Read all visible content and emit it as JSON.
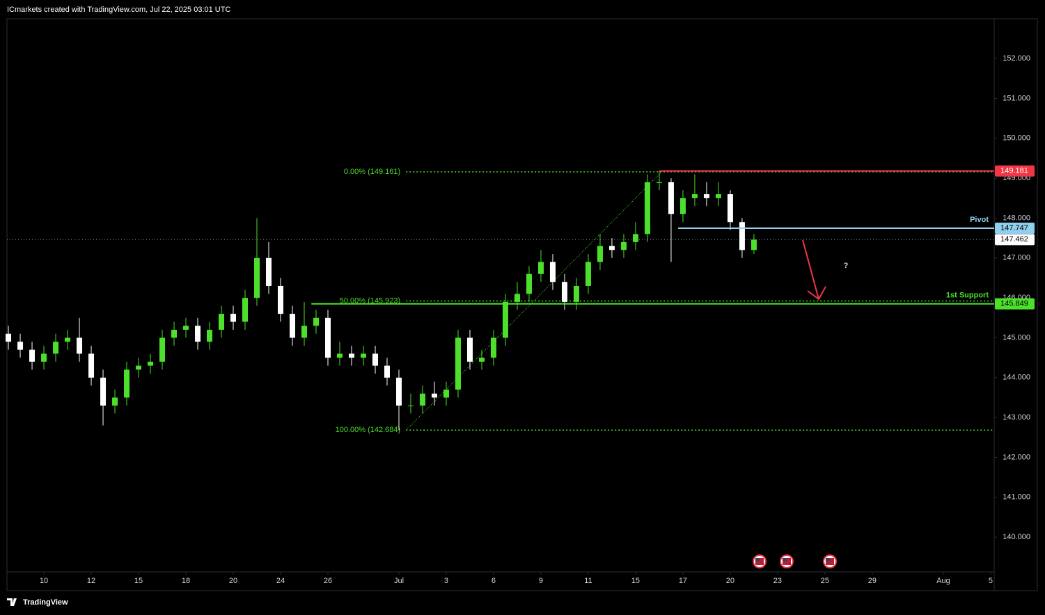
{
  "header": "ICmarkets created with TradingView.com, Jul 22, 2025 03:01 UTC",
  "footer": "TradingView",
  "chart_data": {
    "type": "candlestick",
    "x": [
      -0.5,
      0,
      0.5,
      1,
      1.5,
      2,
      2.5,
      3,
      3.5,
      4,
      4.5,
      5,
      5.5,
      6,
      6.5,
      7,
      7.5,
      8,
      8.5,
      9,
      9.5,
      10,
      10.5,
      11,
      11.5,
      12,
      12.5,
      13,
      13.5,
      14,
      14.5,
      15,
      15.5,
      16,
      16.5,
      17,
      17.5,
      18,
      18.5,
      19,
      19.5,
      20,
      20.5,
      21,
      21.5,
      22,
      22.5,
      23,
      23.5,
      24,
      24.5,
      25,
      25.5,
      26,
      26.5,
      27,
      27.5,
      28,
      28.5,
      29,
      29.5,
      30,
      30.5,
      31
    ],
    "open": [
      145.1,
      144.9,
      144.7,
      144.4,
      144.6,
      144.9,
      145.0,
      144.6,
      144.0,
      143.3,
      143.5,
      144.2,
      144.3,
      144.4,
      145.0,
      145.2,
      145.3,
      144.9,
      145.2,
      145.6,
      145.4,
      146.0,
      147.0,
      146.3,
      145.6,
      145.0,
      145.3,
      145.5,
      144.5,
      144.6,
      144.5,
      144.6,
      144.3,
      144.0,
      143.3,
      143.3,
      143.6,
      143.5,
      143.7,
      145.0,
      144.4,
      144.5,
      145.0,
      145.9,
      146.1,
      146.6,
      146.9,
      146.4,
      145.9,
      146.3,
      146.9,
      147.3,
      147.2,
      147.4,
      147.6,
      148.9,
      148.9,
      148.1,
      148.5,
      148.6,
      148.5,
      148.6,
      147.9,
      147.2
    ],
    "high": [
      145.3,
      145.1,
      144.9,
      144.8,
      145.1,
      145.2,
      145.5,
      144.8,
      144.2,
      143.7,
      144.4,
      144.5,
      144.6,
      145.2,
      145.4,
      145.5,
      145.5,
      145.4,
      145.8,
      145.8,
      146.2,
      148.0,
      147.4,
      146.5,
      145.8,
      145.9,
      145.7,
      145.7,
      144.9,
      144.8,
      144.8,
      144.8,
      144.5,
      144.2,
      143.6,
      143.8,
      143.9,
      143.9,
      145.2,
      145.2,
      144.7,
      145.2,
      146.1,
      146.4,
      146.8,
      147.2,
      147.1,
      146.6,
      146.5,
      147.1,
      147.6,
      147.5,
      147.6,
      147.9,
      149.1,
      149.18,
      149.0,
      148.7,
      149.1,
      148.9,
      148.9,
      148.7,
      148.0,
      147.6
    ],
    "low": [
      144.7,
      144.5,
      144.2,
      144.2,
      144.4,
      144.7,
      144.4,
      143.8,
      142.8,
      143.1,
      143.3,
      144.0,
      144.1,
      144.2,
      144.8,
      145.0,
      144.7,
      144.7,
      145.0,
      145.2,
      145.2,
      145.8,
      146.1,
      145.4,
      144.8,
      144.8,
      145.1,
      144.3,
      144.3,
      144.3,
      144.3,
      144.1,
      143.8,
      142.68,
      143.1,
      143.1,
      143.3,
      143.3,
      143.5,
      144.2,
      144.2,
      144.3,
      144.8,
      145.7,
      145.9,
      146.4,
      146.2,
      145.7,
      145.7,
      146.1,
      146.7,
      147.0,
      147.0,
      147.2,
      147.4,
      148.7,
      146.9,
      147.9,
      148.3,
      148.3,
      148.3,
      147.7,
      147.0,
      147.1
    ],
    "close": [
      144.9,
      144.7,
      144.4,
      144.6,
      144.9,
      145.0,
      144.6,
      144.0,
      143.3,
      143.5,
      144.2,
      144.3,
      144.4,
      145.0,
      145.2,
      145.3,
      144.9,
      145.2,
      145.6,
      145.4,
      146.0,
      147.0,
      146.3,
      145.6,
      145.0,
      145.3,
      145.5,
      144.5,
      144.6,
      144.5,
      144.6,
      144.3,
      144.0,
      143.3,
      143.3,
      143.6,
      143.5,
      143.7,
      145.0,
      144.4,
      144.5,
      145.0,
      145.9,
      146.1,
      146.6,
      146.9,
      146.4,
      145.9,
      146.3,
      146.9,
      147.3,
      147.2,
      147.4,
      147.6,
      148.9,
      148.9,
      148.1,
      148.5,
      148.6,
      148.5,
      148.6,
      147.9,
      147.2,
      147.46
    ],
    "up_color": "#4cdf2b",
    "down_color": "#ffffff",
    "xlim": [
      -0.56,
      41.15
    ],
    "xticks": [
      {
        "value": 1,
        "label": "10"
      },
      {
        "value": 3,
        "label": "12"
      },
      {
        "value": 5,
        "label": "15"
      },
      {
        "value": 7,
        "label": "18"
      },
      {
        "value": 9,
        "label": "20"
      },
      {
        "value": 11,
        "label": "24"
      },
      {
        "value": 13,
        "label": "26"
      },
      {
        "value": 16,
        "label": "Jul"
      },
      {
        "value": 18,
        "label": "3"
      },
      {
        "value": 20,
        "label": "6"
      },
      {
        "value": 22,
        "label": "9"
      },
      {
        "value": 24,
        "label": "11"
      },
      {
        "value": 26,
        "label": "15"
      },
      {
        "value": 28,
        "label": "17"
      },
      {
        "value": 30,
        "label": "20"
      },
      {
        "value": 32,
        "label": "23"
      },
      {
        "value": 34,
        "label": "25"
      },
      {
        "value": 36,
        "label": "29"
      },
      {
        "value": 39,
        "label": "Aug"
      },
      {
        "value": 41,
        "label": "5"
      }
    ],
    "ylim": [
      139.13,
      152.98
    ],
    "yticks": [
      {
        "value": 140,
        "label": "140.000"
      },
      {
        "value": 141,
        "label": "141.000"
      },
      {
        "value": 142,
        "label": "142.000"
      },
      {
        "value": 143,
        "label": "143.000"
      },
      {
        "value": 144,
        "label": "144.000"
      },
      {
        "value": 145,
        "label": "145.000"
      },
      {
        "value": 146,
        "label": "146.000"
      },
      {
        "value": 147,
        "label": "147.000"
      },
      {
        "value": 148,
        "label": "148.000"
      },
      {
        "value": 149,
        "label": "149.000"
      },
      {
        "value": 150,
        "label": "150.000"
      },
      {
        "value": 151,
        "label": "151.000"
      },
      {
        "value": 152,
        "label": "152.000"
      }
    ],
    "fib": {
      "x": [
        16.3,
        27.1
      ],
      "levels": [
        {
          "label": "0.00% (149.161)",
          "value": 149.161
        },
        {
          "label": "50.00% (145.923)",
          "value": 145.923
        },
        {
          "label": "100.00% (142.684)",
          "value": 142.684
        }
      ],
      "color": "#4cdf2b"
    },
    "levels": [
      {
        "value": 149.181,
        "from": 27,
        "color": "#f23645",
        "text_color": "#ffffff"
      },
      {
        "name": "Pivot",
        "value": 147.747,
        "from": 27.8,
        "color": "#8fd0ef",
        "text_color": "#000000"
      },
      {
        "name": "1st Support",
        "value": 145.849,
        "from": 12.3,
        "color": "#4cdf2b",
        "text_color": "#000000"
      }
    ],
    "last_price": 147.462,
    "annotation": "?"
  }
}
